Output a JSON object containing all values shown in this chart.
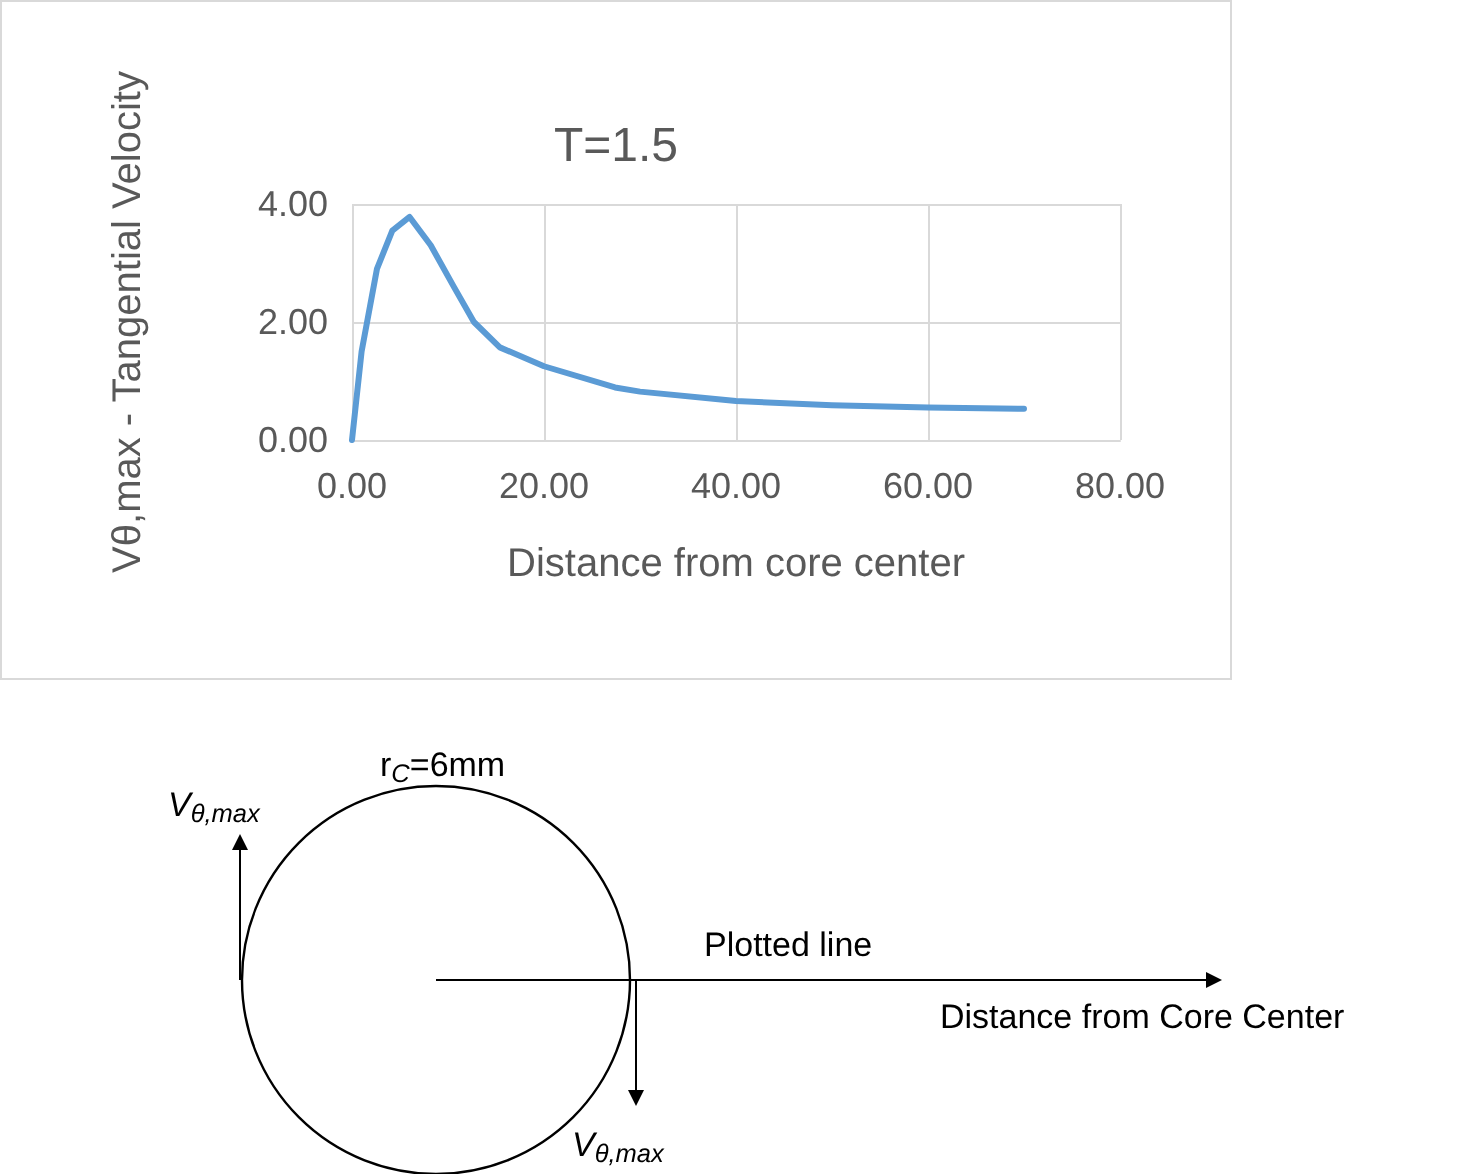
{
  "chart_data": {
    "type": "line",
    "title": "T=1.5",
    "xlabel": "Distance from core center",
    "ylabel": "Vθ,max - Tangential Velocity",
    "x": [
      0,
      1,
      2.6,
      4.2,
      6,
      8.2,
      10.6,
      12.7,
      15.4,
      20,
      27.4,
      30,
      40,
      50,
      60,
      70
    ],
    "series": [
      {
        "color": "#5b9bd5",
        "values": [
          0,
          1.5,
          2.9,
          3.55,
          3.78,
          3.3,
          2.6,
          2.0,
          1.57,
          1.25,
          0.89,
          0.82,
          0.66,
          0.59,
          0.55,
          0.53
        ]
      }
    ],
    "xlim": [
      0,
      80
    ],
    "xticks": [
      {
        "value": 0,
        "label": "0.00"
      },
      {
        "value": 20,
        "label": "20.00"
      },
      {
        "value": 40,
        "label": "40.00"
      },
      {
        "value": 60,
        "label": "60.00"
      },
      {
        "value": 80,
        "label": "80.00"
      }
    ],
    "ylim": [
      0,
      4
    ],
    "yticks": [
      {
        "value": 0,
        "label": "0.00"
      },
      {
        "value": 2,
        "label": "2.00"
      },
      {
        "value": 4,
        "label": "4.00"
      }
    ],
    "grid": true,
    "marker": "none",
    "line_style": "solid",
    "annotations": [
      "r$_{C}$=6mm",
      "V$_{θ,max}$",
      "Plotted line",
      "Distance from Core Center",
      "V$_{θ,max}$"
    ]
  }
}
